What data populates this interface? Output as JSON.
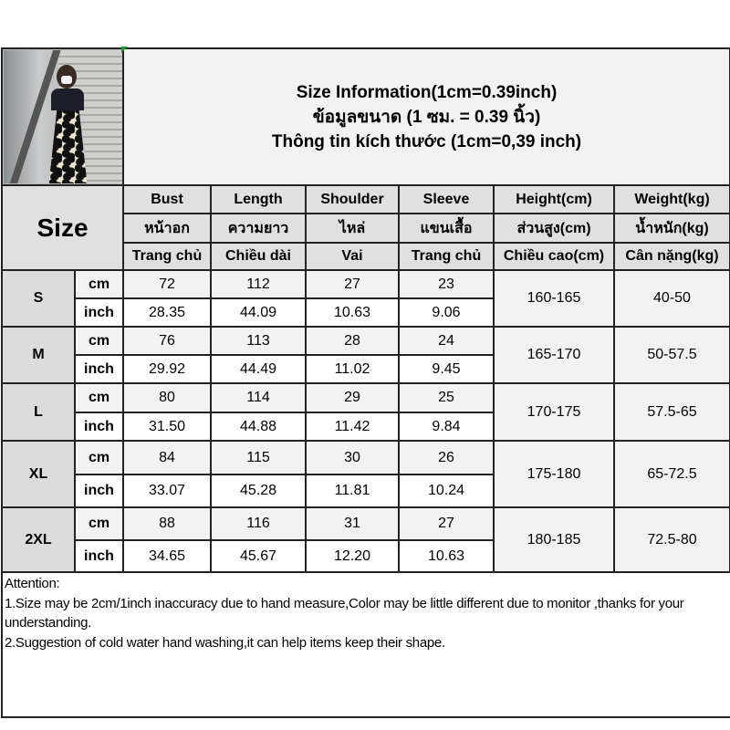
{
  "title": {
    "lines": [
      "Size Information(1cm=0.39inch)",
      "ข้อมูลขนาด (1 ซม. = 0.39 นิ้ว)",
      "Thông tin kích thước (1cm=0,39 inch)"
    ]
  },
  "header": {
    "size_label": "Size",
    "columns": [
      [
        "Bust",
        "หน้าอก",
        "Trang chủ"
      ],
      [
        "Length",
        "ความยาว",
        "Chiều dài"
      ],
      [
        "Shoulder",
        "ไหล่",
        "Vai"
      ],
      [
        "Sleeve",
        "แขนเสื้อ",
        "Trang chủ"
      ],
      [
        "Height(cm)",
        "ส่วนสูง(cm)",
        "Chiều cao(cm)"
      ],
      [
        "Weight(kg)",
        "น้ำหนัก(kg)",
        "Cân nặng(kg)"
      ]
    ]
  },
  "units": [
    "cm",
    "inch"
  ],
  "sizes": [
    {
      "size": "S",
      "cm": [
        "72",
        "112",
        "27",
        "23"
      ],
      "inch": [
        "28.35",
        "44.09",
        "10.63",
        "9.06"
      ],
      "height": "160-165",
      "weight": "40-50"
    },
    {
      "size": "M",
      "cm": [
        "76",
        "113",
        "28",
        "24"
      ],
      "inch": [
        "29.92",
        "44.49",
        "11.02",
        "9.45"
      ],
      "height": "165-170",
      "weight": "50-57.5"
    },
    {
      "size": "L",
      "cm": [
        "80",
        "114",
        "29",
        "25"
      ],
      "inch": [
        "31.50",
        "44.88",
        "11.42",
        "9.84"
      ],
      "height": "170-175",
      "weight": "57.5-65"
    },
    {
      "size": "XL",
      "cm": [
        "84",
        "115",
        "30",
        "26"
      ],
      "inch": [
        "33.07",
        "45.28",
        "11.81",
        "10.24"
      ],
      "height": "175-180",
      "weight": "65-72.5"
    },
    {
      "size": "2XL",
      "cm": [
        "88",
        "116",
        "31",
        "27"
      ],
      "inch": [
        "34.65",
        "45.67",
        "12.20",
        "10.63"
      ],
      "height": "180-185",
      "weight": "72.5-80"
    }
  ],
  "attention": {
    "heading": "Attention:",
    "notes": [
      "1.Size may be 2cm/1inch inaccuracy due to hand measure,Color may be little different due to monitor ,thanks for your understanding.",
      "2.Suggestion of cold water hand washing,it can help items keep their shape."
    ]
  },
  "colors": {
    "header_bg": "#e0e0e0",
    "title_bg": "#f2f2f2",
    "border": "#222222",
    "marker": "#1a9c2a"
  }
}
